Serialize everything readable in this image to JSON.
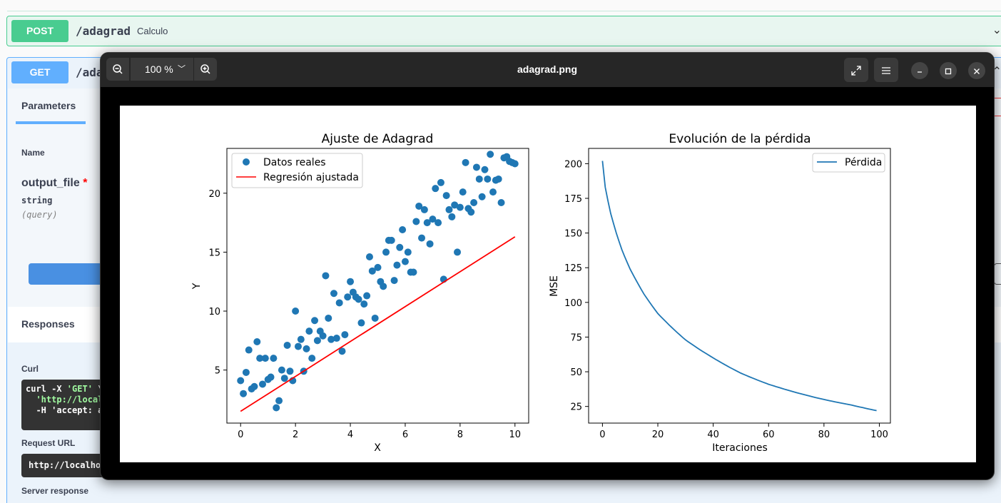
{
  "swagger": {
    "post_op": {
      "method": "POST",
      "path": "/adagrad",
      "summary": "Calculo"
    },
    "get_op": {
      "method": "GET",
      "path": "/ada"
    },
    "tab_parameters": "Parameters",
    "name_header": "Name",
    "param": {
      "name": "output_file",
      "required_mark": "*",
      "type": "string",
      "location": "(query)"
    },
    "responses_title": "Responses",
    "curl_label": "Curl",
    "curl_lines": [
      "curl -X ",
      "'GET'",
      " \\",
      "  'http://local",
      "  -H 'accept: a"
    ],
    "request_url_label": "Request URL",
    "request_url_value": "http://localho",
    "server_response_label": "Server response"
  },
  "viewer": {
    "title": "adagrad.png",
    "zoom_level": "100 %",
    "icons": {
      "zoom_out": "zoom-out-icon",
      "zoom_in": "zoom-in-icon",
      "fullscreen": "fullscreen-icon",
      "menu": "hamburger-menu-icon",
      "minimize": "minimize-icon",
      "maximize": "maximize-icon",
      "close": "close-icon"
    }
  },
  "chart_data": [
    {
      "type": "scatter",
      "title": "Ajuste de Adagrad",
      "xlabel": "X",
      "ylabel": "Y",
      "xlim": [
        -0.5,
        10.5
      ],
      "ylim": [
        0.5,
        23.8
      ],
      "xticks": [
        0,
        2,
        4,
        6,
        8,
        10
      ],
      "yticks": [
        5,
        10,
        15,
        20
      ],
      "legend_position": "top-left",
      "colors": {
        "points": "#1f77b4",
        "line": "#ff0000"
      },
      "series": [
        {
          "name": "Datos reales",
          "kind": "scatter",
          "x": [
            0.0,
            0.1,
            0.2,
            0.3,
            0.4,
            0.5,
            0.6,
            0.7,
            0.8,
            0.9,
            1.0,
            1.1,
            1.2,
            1.3,
            1.4,
            1.5,
            1.6,
            1.7,
            1.8,
            1.9,
            2.0,
            2.1,
            2.2,
            2.3,
            2.4,
            2.5,
            2.6,
            2.7,
            2.8,
            2.9,
            3.0,
            3.1,
            3.2,
            3.3,
            3.4,
            3.5,
            3.6,
            3.7,
            3.8,
            3.9,
            4.0,
            4.1,
            4.2,
            4.3,
            4.4,
            4.5,
            4.6,
            4.7,
            4.8,
            4.9,
            5.0,
            5.1,
            5.2,
            5.3,
            5.4,
            5.5,
            5.6,
            5.7,
            5.8,
            5.9,
            6.0,
            6.1,
            6.2,
            6.3,
            6.4,
            6.5,
            6.6,
            6.7,
            6.8,
            6.9,
            7.0,
            7.1,
            7.2,
            7.3,
            7.4,
            7.5,
            7.6,
            7.7,
            7.8,
            7.9,
            8.0,
            8.1,
            8.2,
            8.3,
            8.4,
            8.5,
            8.6,
            8.7,
            8.8,
            8.9,
            9.0,
            9.1,
            9.2,
            9.3,
            9.4,
            9.5,
            9.6,
            9.7,
            9.8,
            9.9,
            10.0
          ],
          "y": [
            4.1,
            3.0,
            4.8,
            6.7,
            3.4,
            3.6,
            7.4,
            6.0,
            3.8,
            6.0,
            4.2,
            4.4,
            6.0,
            1.8,
            2.4,
            5.0,
            4.3,
            7.1,
            4.9,
            4.1,
            10.0,
            7.0,
            7.6,
            4.9,
            6.8,
            8.3,
            6.0,
            9.2,
            7.5,
            8.3,
            7.9,
            13.0,
            9.4,
            7.6,
            11.5,
            7.7,
            10.7,
            6.6,
            8.0,
            11.2,
            12.5,
            11.6,
            11.2,
            11.0,
            9.0,
            10.6,
            11.3,
            14.6,
            13.4,
            9.4,
            13.7,
            12.5,
            12.1,
            15.0,
            16.0,
            16.0,
            12.6,
            13.9,
            15.4,
            16.9,
            14.2,
            15.0,
            13.3,
            13.3,
            17.6,
            18.9,
            16.2,
            18.6,
            17.5,
            15.7,
            17.8,
            20.4,
            17.5,
            20.9,
            12.7,
            19.8,
            18.6,
            18.0,
            19.0,
            15.0,
            18.8,
            20.1,
            22.6,
            18.7,
            18.4,
            19.2,
            22.2,
            21.2,
            19.7,
            22.0,
            21.2,
            23.3,
            20.1,
            21.1,
            21.2,
            19.2,
            23.0,
            23.1,
            22.7,
            22.6,
            22.5
          ]
        },
        {
          "name": "Regresión ajustada",
          "kind": "line",
          "x": [
            0,
            10
          ],
          "y": [
            1.5,
            16.3
          ]
        }
      ]
    },
    {
      "type": "line",
      "title": "Evolución de la pérdida",
      "xlabel": "Iteraciones",
      "ylabel": "MSE",
      "xlim": [
        -5,
        104
      ],
      "ylim": [
        13,
        211
      ],
      "xticks": [
        0,
        20,
        40,
        60,
        80,
        100
      ],
      "yticks": [
        25,
        50,
        75,
        100,
        125,
        150,
        175,
        200
      ],
      "legend_position": "top-right",
      "colors": {
        "line": "#1f77b4"
      },
      "series": [
        {
          "name": "Pérdida",
          "x": [
            0,
            1,
            2,
            3,
            5,
            7,
            10,
            15,
            20,
            25,
            30,
            40,
            50,
            60,
            70,
            80,
            90,
            99
          ],
          "y": [
            202,
            183,
            173,
            164,
            150,
            138,
            124,
            106,
            92,
            82,
            73,
            60,
            49,
            41,
            35,
            30,
            26,
            22
          ]
        }
      ]
    }
  ]
}
